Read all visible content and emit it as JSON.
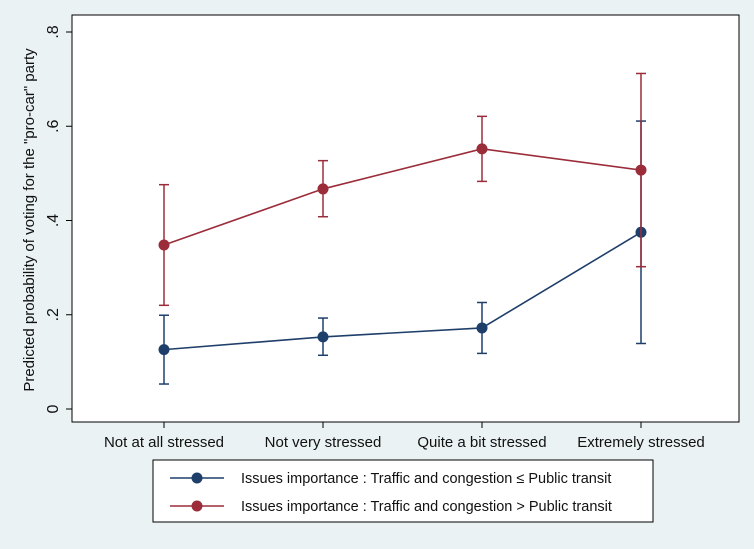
{
  "chart_data": {
    "type": "line",
    "title": "",
    "xlabel": "",
    "ylabel": "Predicted probability of voting for the \"pro-car\" party",
    "categories": [
      "Not at all stressed",
      "Not very stressed",
      "Quite a bit stressed",
      "Extremely stressed"
    ],
    "ylim": [
      0,
      0.8
    ],
    "yticks": [
      0,
      0.2,
      0.4,
      0.6,
      0.8
    ],
    "ytick_labels": [
      "0",
      ".2",
      ".4",
      ".6",
      ".8"
    ],
    "grid": false,
    "legend_position": "bottom",
    "series": [
      {
        "name": "Issues importance : Traffic and congestion ≤ Public transit",
        "color": "#1f3f6b",
        "values": [
          0.126,
          0.153,
          0.172,
          0.375
        ],
        "ci_low": [
          0.053,
          0.114,
          0.118,
          0.139
        ],
        "ci_high": [
          0.199,
          0.193,
          0.226,
          0.611
        ]
      },
      {
        "name": "Issues importance : Traffic and congestion > Public transit",
        "color": "#9b2d3a",
        "values": [
          0.348,
          0.467,
          0.552,
          0.507
        ],
        "ci_low": [
          0.22,
          0.408,
          0.483,
          0.302
        ],
        "ci_high": [
          0.476,
          0.527,
          0.621,
          0.712
        ]
      }
    ]
  }
}
